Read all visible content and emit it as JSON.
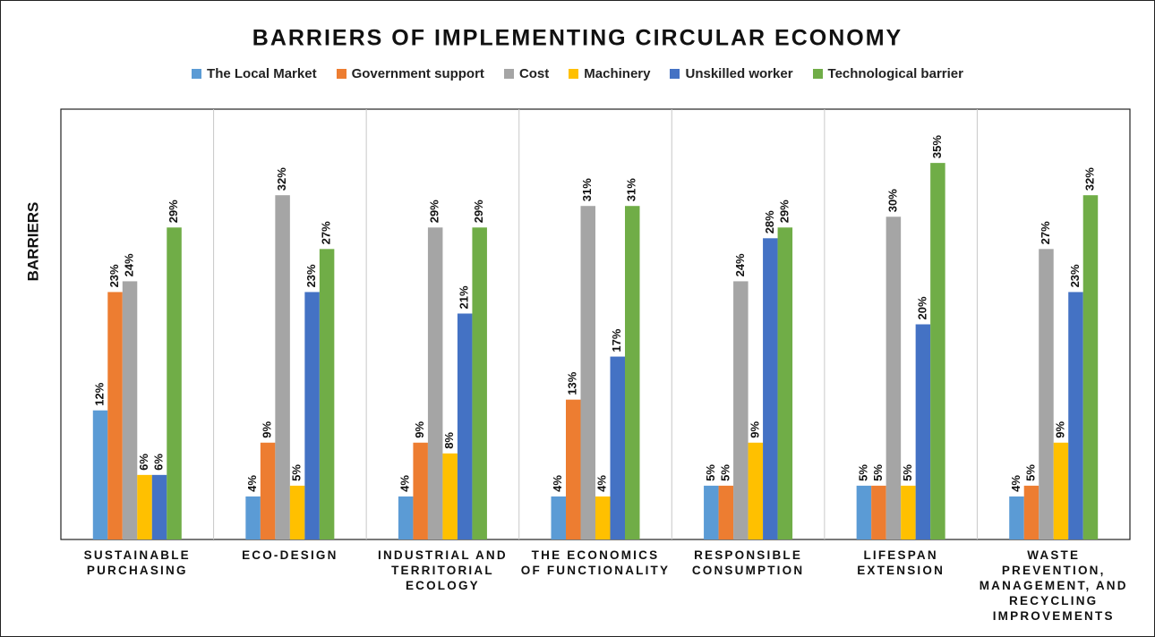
{
  "chart_data": {
    "type": "bar",
    "title": "BARRIERS OF IMPLEMENTING CIRCULAR ECONOMY",
    "y_label": "BARRIERS",
    "legend": "top",
    "categories": [
      "SUSTAINABLE PURCHASING",
      "ECO-DESIGN",
      "INDUSTRIAL AND TERRITORIAL ECOLOGY",
      "THE ECONOMICS OF FUNCTIONALITY",
      "RESPONSIBLE CONSUMPTION",
      "LIFESPAN EXTENSION",
      "WASTE PREVENTION, MANAGEMENT, AND RECYCLING IMPROVEMENTS"
    ],
    "ylim": [
      0,
      40
    ],
    "series": [
      {
        "name": "The Local Market",
        "color": "#5b9bd5",
        "values": [
          12,
          4,
          4,
          4,
          5,
          5,
          4
        ],
        "value_labels": [
          "12%",
          "4%",
          "4%",
          "4%",
          "5%",
          "5%",
          "4%"
        ]
      },
      {
        "name": "Government support",
        "color": "#ed7d31",
        "values": [
          23,
          9,
          9,
          13,
          5,
          5,
          5
        ],
        "value_labels": [
          "23%",
          "9%",
          "9%",
          "13%",
          "5%",
          "5%",
          "5%"
        ]
      },
      {
        "name": "Cost",
        "color": "#a5a5a5",
        "values": [
          24,
          32,
          29,
          31,
          24,
          30,
          27
        ],
        "value_labels": [
          "24%",
          "32%",
          "29%",
          "31%",
          "24%",
          "30%",
          "27%"
        ]
      },
      {
        "name": "Machinery",
        "color": "#ffc000",
        "values": [
          6,
          5,
          8,
          4,
          9,
          5,
          9
        ],
        "value_labels": [
          "6%",
          "5%",
          "8%",
          "4%",
          "9%",
          "5%",
          "9%"
        ]
      },
      {
        "name": "Unskilled worker",
        "color": "#4472c4",
        "values": [
          6,
          23,
          21,
          17,
          28,
          20,
          23
        ],
        "value_labels": [
          "6%",
          "23%",
          "21%",
          "17%",
          "28%",
          "20%",
          "23%"
        ]
      },
      {
        "name": "Technological barrier",
        "color": "#70ad47",
        "values": [
          29,
          27,
          29,
          31,
          29,
          35,
          32
        ],
        "value_labels": [
          "29%",
          "27%",
          "29%",
          "31%",
          "29%",
          "35%",
          "32%"
        ]
      }
    ]
  }
}
